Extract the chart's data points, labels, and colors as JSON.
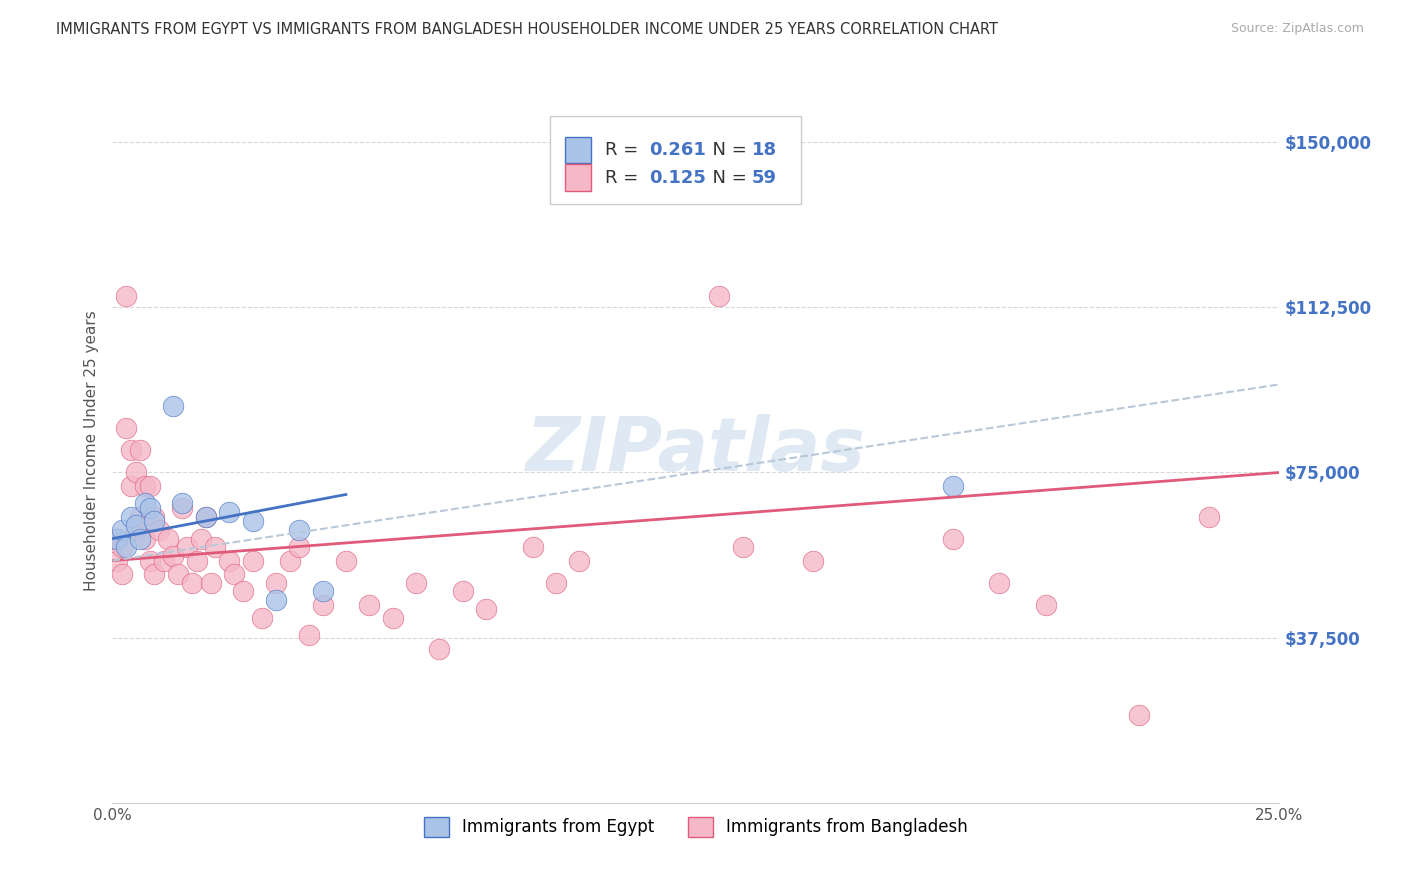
{
  "title": "IMMIGRANTS FROM EGYPT VS IMMIGRANTS FROM BANGLADESH HOUSEHOLDER INCOME UNDER 25 YEARS CORRELATION CHART",
  "source": "Source: ZipAtlas.com",
  "ylabel": "Householder Income Under 25 years",
  "xlim": [
    0.0,
    0.25
  ],
  "ylim": [
    0,
    160000
  ],
  "yticks": [
    0,
    37500,
    75000,
    112500,
    150000
  ],
  "r_egypt": 0.261,
  "n_egypt": 18,
  "r_bangladesh": 0.125,
  "n_bangladesh": 59,
  "egypt_color": "#aac4e8",
  "bangladesh_color": "#f4b8c8",
  "egypt_line_color": "#4472c4",
  "bangladesh_line_color": "#e05a7a",
  "trend_line_color": "#b8c8d8",
  "egypt_scatter_x": [
    0.001,
    0.002,
    0.003,
    0.004,
    0.005,
    0.006,
    0.007,
    0.008,
    0.009,
    0.013,
    0.015,
    0.02,
    0.025,
    0.03,
    0.035,
    0.04,
    0.045,
    0.18
  ],
  "egypt_scatter_y": [
    60000,
    62000,
    58000,
    65000,
    63000,
    60000,
    68000,
    67000,
    64000,
    90000,
    68000,
    65000,
    66000,
    64000,
    46000,
    62000,
    48000,
    72000
  ],
  "bangladesh_scatter_x": [
    0.001,
    0.001,
    0.002,
    0.002,
    0.003,
    0.003,
    0.004,
    0.004,
    0.005,
    0.005,
    0.006,
    0.006,
    0.007,
    0.007,
    0.008,
    0.008,
    0.009,
    0.009,
    0.01,
    0.011,
    0.012,
    0.013,
    0.014,
    0.015,
    0.016,
    0.017,
    0.018,
    0.019,
    0.02,
    0.021,
    0.022,
    0.025,
    0.026,
    0.028,
    0.03,
    0.032,
    0.035,
    0.038,
    0.04,
    0.042,
    0.045,
    0.05,
    0.055,
    0.06,
    0.065,
    0.07,
    0.075,
    0.08,
    0.09,
    0.095,
    0.1,
    0.13,
    0.135,
    0.15,
    0.18,
    0.19,
    0.2,
    0.22,
    0.235
  ],
  "bangladesh_scatter_y": [
    60000,
    55000,
    58000,
    52000,
    115000,
    85000,
    80000,
    72000,
    75000,
    62000,
    80000,
    65000,
    72000,
    60000,
    72000,
    55000,
    65000,
    52000,
    62000,
    55000,
    60000,
    56000,
    52000,
    67000,
    58000,
    50000,
    55000,
    60000,
    65000,
    50000,
    58000,
    55000,
    52000,
    48000,
    55000,
    42000,
    50000,
    55000,
    58000,
    38000,
    45000,
    55000,
    45000,
    42000,
    50000,
    35000,
    48000,
    44000,
    58000,
    50000,
    55000,
    115000,
    58000,
    55000,
    60000,
    50000,
    45000,
    20000,
    65000
  ],
  "watermark": "ZIPatlas",
  "background_color": "#ffffff",
  "grid_color": "#d8d8d8"
}
